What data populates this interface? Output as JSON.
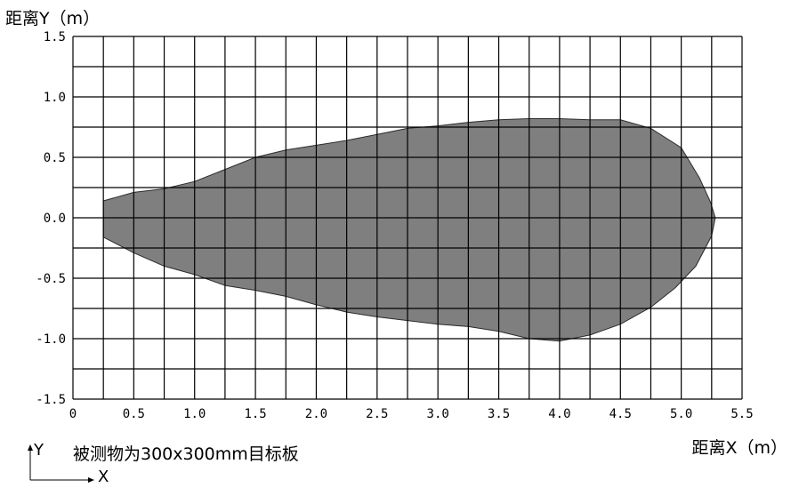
{
  "chart_data": {
    "type": "area",
    "title": "",
    "ylabel": "距离Y（m）",
    "xlabel": "距离X（m）",
    "note": "被测物为300x300mm目标板",
    "axis_indicator": {
      "y": "Y",
      "x": "X"
    },
    "xlim": [
      0,
      5.5
    ],
    "ylim": [
      -1.5,
      1.5
    ],
    "x_ticks": [
      {
        "value": 0,
        "label": "0"
      },
      {
        "value": 0.5,
        "label": "0.5"
      },
      {
        "value": 1.0,
        "label": "1.0"
      },
      {
        "value": 1.5,
        "label": "1.5"
      },
      {
        "value": 2.0,
        "label": "2.0"
      },
      {
        "value": 2.5,
        "label": "2.5"
      },
      {
        "value": 3.0,
        "label": "3.0"
      },
      {
        "value": 3.5,
        "label": "3.5"
      },
      {
        "value": 4.0,
        "label": "4.0"
      },
      {
        "value": 4.5,
        "label": "4.5"
      },
      {
        "value": 5.0,
        "label": "5.0"
      },
      {
        "value": 5.5,
        "label": "5.5"
      }
    ],
    "y_ticks": [
      {
        "value": 1.5,
        "label": "1.5"
      },
      {
        "value": 1.0,
        "label": "1.0"
      },
      {
        "value": 0.5,
        "label": "0.5"
      },
      {
        "value": 0.0,
        "label": "0.0"
      },
      {
        "value": -0.5,
        "label": "-0.5"
      },
      {
        "value": -1.0,
        "label": "-1.0"
      },
      {
        "value": -1.5,
        "label": "-1.5"
      }
    ],
    "grid": true,
    "grid_step_x": 0.25,
    "grid_step_y": 0.25,
    "fill_color": "#7f7f7f",
    "region": [
      [
        0.25,
        0.14
      ],
      [
        0.5,
        0.21
      ],
      [
        0.75,
        0.24
      ],
      [
        1.0,
        0.3
      ],
      [
        1.25,
        0.4
      ],
      [
        1.5,
        0.5
      ],
      [
        1.75,
        0.56
      ],
      [
        2.0,
        0.6
      ],
      [
        2.25,
        0.64
      ],
      [
        2.5,
        0.69
      ],
      [
        2.75,
        0.74
      ],
      [
        3.0,
        0.76
      ],
      [
        3.25,
        0.79
      ],
      [
        3.5,
        0.81
      ],
      [
        3.75,
        0.82
      ],
      [
        4.0,
        0.82
      ],
      [
        4.25,
        0.81
      ],
      [
        4.5,
        0.81
      ],
      [
        4.75,
        0.74
      ],
      [
        5.0,
        0.58
      ],
      [
        5.15,
        0.33
      ],
      [
        5.24,
        0.13
      ],
      [
        5.28,
        0.0
      ],
      [
        5.25,
        -0.15
      ],
      [
        5.12,
        -0.4
      ],
      [
        4.95,
        -0.58
      ],
      [
        4.75,
        -0.74
      ],
      [
        4.5,
        -0.88
      ],
      [
        4.25,
        -0.97
      ],
      [
        4.0,
        -1.02
      ],
      [
        3.75,
        -1.0
      ],
      [
        3.5,
        -0.94
      ],
      [
        3.25,
        -0.9
      ],
      [
        3.0,
        -0.88
      ],
      [
        2.75,
        -0.85
      ],
      [
        2.5,
        -0.82
      ],
      [
        2.25,
        -0.78
      ],
      [
        2.0,
        -0.72
      ],
      [
        1.75,
        -0.65
      ],
      [
        1.5,
        -0.6
      ],
      [
        1.25,
        -0.56
      ],
      [
        1.0,
        -0.47
      ],
      [
        0.75,
        -0.4
      ],
      [
        0.5,
        -0.29
      ],
      [
        0.25,
        -0.16
      ]
    ]
  }
}
